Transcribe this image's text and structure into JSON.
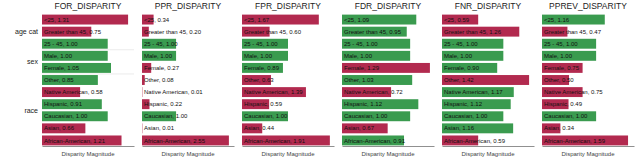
{
  "chart_data": [
    {
      "type": "bar",
      "orientation": "horizontal",
      "title": "FOR_DISPARITY",
      "xlabel": "Disparity Magnitude",
      "categories": [
        "<25",
        "Greater than 45",
        "25 - 45",
        "Male",
        "Female",
        "Other",
        "Native American",
        "Hispanic",
        "Caucasian",
        "Asian",
        "African-American"
      ],
      "category_groups": [
        "age cat",
        "age cat",
        "age cat",
        "sex",
        "sex",
        "race",
        "race",
        "race",
        "race",
        "race",
        "race"
      ],
      "values": [
        1.31,
        0.75,
        1.0,
        1.0,
        1.05,
        0.85,
        0.58,
        0.91,
        1.0,
        0.66,
        1.21
      ],
      "value_labels": [
        "<25, 1.31",
        "Greater than 45, 0.75",
        "25 - 45, 1.00",
        "Male, 1.00",
        "Female, 1.05",
        "Other, 0.85",
        "Native American, 0.58",
        "Hispanic, 0.91",
        "Caucasian, 1.00",
        "Asian, 0.66",
        "African-American, 1.21"
      ],
      "colors": [
        "#b22a4f",
        "#b22a4f",
        "#3a9b4f",
        "#3a9b4f",
        "#3a9b4f",
        "#3a9b4f",
        "#b22a4f",
        "#3a9b4f",
        "#3a9b4f",
        "#b22a4f",
        "#b22a4f"
      ],
      "xlim": [
        0,
        1.4
      ],
      "tick_labels": false,
      "data_labels": true
    },
    {
      "type": "bar",
      "orientation": "horizontal",
      "title": "PPR_DISPARITY",
      "xlabel": "Disparity Magnitude",
      "categories": [
        "<25",
        "Greater than 45",
        "25 - 45",
        "Male",
        "Female",
        "Other",
        "Native American",
        "Hispanic",
        "Caucasian",
        "Asian",
        "African-American"
      ],
      "values": [
        0.34,
        0.2,
        1.0,
        1.0,
        0.27,
        0.08,
        0.01,
        0.22,
        1.0,
        0.01,
        2.55
      ],
      "value_labels": [
        "<25, 0.34",
        "Greater than 45, 0.20",
        "25 - 45, 1.00",
        "Male, 1.00",
        "Female, 0.27",
        "Other, 0.08",
        "Native American, 0.01",
        "Hispanic, 0.22",
        "Caucasian, 1.00",
        "Asian, 0.01",
        "African-American, 2.55"
      ],
      "colors": [
        "#b22a4f",
        "#b22a4f",
        "#3a9b4f",
        "#3a9b4f",
        "#b22a4f",
        "#b22a4f",
        "#b22a4f",
        "#b22a4f",
        "#3a9b4f",
        "#b22a4f",
        "#b22a4f"
      ],
      "xlim": [
        0,
        2.7
      ],
      "tick_labels": false,
      "data_labels": true
    },
    {
      "type": "bar",
      "orientation": "horizontal",
      "title": "FPR_DISPARITY",
      "xlabel": "Disparity Magnitude",
      "categories": [
        "<25",
        "Greater than 45",
        "25 - 45",
        "Male",
        "Female",
        "Other",
        "Native American",
        "Hispanic",
        "Caucasian",
        "Asian",
        "African-American"
      ],
      "values": [
        1.67,
        0.6,
        1.0,
        1.0,
        0.89,
        0.63,
        1.39,
        0.59,
        1.0,
        0.44,
        1.91
      ],
      "value_labels": [
        "<25, 1.67",
        "Greater than 45, 0.60",
        "25 - 45, 1.00",
        "Male, 1.00",
        "Female, 0.89",
        "Other, 0.63",
        "Native American, 1.39",
        "Hispanic, 0.59",
        "Caucasian, 1.00",
        "Asian, 0.44",
        "African-American, 1.91"
      ],
      "colors": [
        "#b22a4f",
        "#b22a4f",
        "#3a9b4f",
        "#3a9b4f",
        "#3a9b4f",
        "#b22a4f",
        "#b22a4f",
        "#b22a4f",
        "#3a9b4f",
        "#b22a4f",
        "#b22a4f"
      ],
      "xlim": [
        0,
        2.0
      ],
      "tick_labels": false,
      "data_labels": true
    },
    {
      "type": "bar",
      "orientation": "horizontal",
      "title": "FDR_DISPARITY",
      "xlabel": "Disparity Magnitude",
      "categories": [
        "<25",
        "Greater than 45",
        "25 - 45",
        "Male",
        "Female",
        "Other",
        "Native American",
        "Hispanic",
        "Caucasian",
        "Asian",
        "African-American"
      ],
      "values": [
        1.09,
        0.95,
        1.0,
        1.0,
        1.29,
        1.03,
        0.72,
        1.12,
        1.0,
        0.67,
        0.91
      ],
      "value_labels": [
        "<25, 1.09",
        "Greater than 45, 0.95",
        "25 - 45, 1.00",
        "Male, 1.00",
        "Female, 1.29",
        "Other, 1.03",
        "Native American, 0.72",
        "Hispanic, 1.12",
        "Caucasian, 1.00",
        "Asian, 0.67",
        "African-American, 0.91"
      ],
      "colors": [
        "#3a9b4f",
        "#3a9b4f",
        "#3a9b4f",
        "#3a9b4f",
        "#b22a4f",
        "#3a9b4f",
        "#b22a4f",
        "#3a9b4f",
        "#3a9b4f",
        "#b22a4f",
        "#3a9b4f"
      ],
      "xlim": [
        0,
        1.35
      ],
      "tick_labels": false,
      "data_labels": true
    },
    {
      "type": "bar",
      "orientation": "horizontal",
      "title": "FNR_DISPARITY",
      "xlabel": "Disparity Magnitude",
      "categories": [
        "<25",
        "Greater than 45",
        "25 - 45",
        "Male",
        "Female",
        "Other",
        "Native American",
        "Hispanic",
        "Caucasian",
        "Asian",
        "African-American"
      ],
      "values": [
        0.59,
        1.26,
        1.0,
        1.0,
        0.9,
        1.42,
        1.17,
        1.12,
        1.0,
        1.16,
        0.59
      ],
      "value_labels": [
        "<25, 0.59",
        "Greater than 45, 1.26",
        "25 - 45, 1.00",
        "Male, 1.00",
        "Female, 0.90",
        "Other, 1.42",
        "Native American, 1.17",
        "Hispanic, 1.12",
        "Caucasian, 1.00",
        "Asian, 1.16",
        "African-American, 0.59"
      ],
      "colors": [
        "#b22a4f",
        "#b22a4f",
        "#3a9b4f",
        "#3a9b4f",
        "#3a9b4f",
        "#b22a4f",
        "#3a9b4f",
        "#3a9b4f",
        "#3a9b4f",
        "#3a9b4f",
        "#b22a4f"
      ],
      "xlim": [
        0,
        1.5
      ],
      "tick_labels": false,
      "data_labels": true
    },
    {
      "type": "bar",
      "orientation": "horizontal",
      "title": "PPREV_DISPARITY",
      "xlabel": "Disparity Magnitude",
      "categories": [
        "<25",
        "Greater than 45",
        "25 - 45",
        "Male",
        "Female",
        "Other",
        "Native American",
        "Hispanic",
        "Caucasian",
        "Asian",
        "African-American"
      ],
      "values": [
        1.16,
        0.47,
        1.0,
        1.0,
        0.75,
        0.5,
        0.75,
        0.49,
        1.0,
        0.34,
        1.59
      ],
      "value_labels": [
        "<25, 1.16",
        "Greater than 45, 0.47",
        "25 - 45, 1.00",
        "Male, 1.00",
        "Female, 0.75",
        "Other, 0.50",
        "Native American, 0.75",
        "Hispanic, 0.49",
        "Caucasian, 1.00",
        "Asian, 0.34",
        "African-American, 1.59"
      ],
      "colors": [
        "#3a9b4f",
        "#b22a4f",
        "#3a9b4f",
        "#3a9b4f",
        "#b22a4f",
        "#b22a4f",
        "#b22a4f",
        "#b22a4f",
        "#3a9b4f",
        "#b22a4f",
        "#b22a4f"
      ],
      "xlim": [
        0,
        1.7
      ],
      "tick_labels": false,
      "data_labels": true
    }
  ]
}
